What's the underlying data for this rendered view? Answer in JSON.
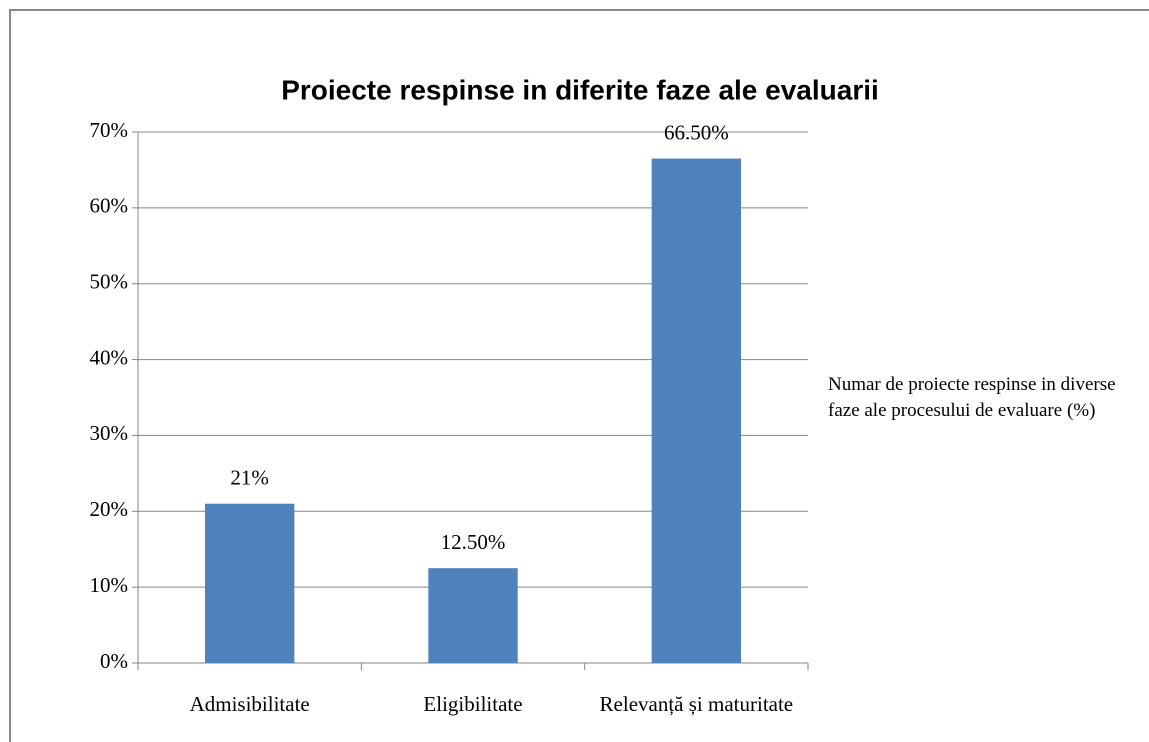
{
  "chart_data": {
    "type": "bar",
    "title": "Proiecte respinse  in diferite faze ale evaluarii",
    "categories": [
      "Admisibilitate",
      "Eligibilitate",
      "Relevanță și maturitate"
    ],
    "series": [
      {
        "name": "Numar de proiecte respinse in diverse faze ale procesului de evaluare (%)",
        "color": "#4f81bd",
        "values": [
          21,
          12.5,
          66.5
        ],
        "value_labels": [
          "21%",
          "12.50%",
          "66.50%"
        ]
      }
    ],
    "ylim": [
      0,
      70
    ],
    "yticks": [
      {
        "value": 0,
        "label": "0%"
      },
      {
        "value": 10,
        "label": "10%"
      },
      {
        "value": 20,
        "label": "20%"
      },
      {
        "value": 30,
        "label": "30%"
      },
      {
        "value": 40,
        "label": "40%"
      },
      {
        "value": 50,
        "label": "50%"
      },
      {
        "value": 60,
        "label": "60%"
      },
      {
        "value": 70,
        "label": "70%"
      }
    ],
    "grid": true
  }
}
